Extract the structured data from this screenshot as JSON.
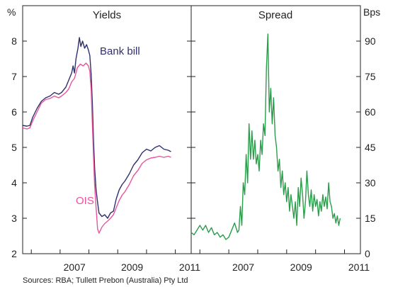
{
  "chart_data": [
    {
      "type": "line",
      "title": "Yields",
      "y_unit": "%",
      "ylim": [
        2,
        9
      ],
      "y_ticks": [
        "2",
        "3",
        "4",
        "5",
        "6",
        "7",
        "8"
      ],
      "x_ticks": [
        "2007",
        "2009",
        "2011"
      ],
      "xlim": [
        2005.7,
        2011.55
      ],
      "series": [
        {
          "name": "Bank bill",
          "color": "#2e2f6e",
          "points": [
            [
              2005.7,
              5.62
            ],
            [
              2005.85,
              5.6
            ],
            [
              2005.95,
              5.62
            ],
            [
              2006.05,
              5.85
            ],
            [
              2006.2,
              6.1
            ],
            [
              2006.35,
              6.3
            ],
            [
              2006.5,
              6.4
            ],
            [
              2006.65,
              6.45
            ],
            [
              2006.8,
              6.55
            ],
            [
              2006.95,
              6.5
            ],
            [
              2007.05,
              6.55
            ],
            [
              2007.2,
              6.7
            ],
            [
              2007.3,
              6.9
            ],
            [
              2007.4,
              7.1
            ],
            [
              2007.45,
              7.3
            ],
            [
              2007.5,
              7.1
            ],
            [
              2007.55,
              7.5
            ],
            [
              2007.62,
              7.8
            ],
            [
              2007.67,
              8.1
            ],
            [
              2007.72,
              7.85
            ],
            [
              2007.78,
              8.0
            ],
            [
              2007.85,
              7.8
            ],
            [
              2007.92,
              7.9
            ],
            [
              2007.98,
              7.75
            ],
            [
              2008.03,
              7.6
            ],
            [
              2008.08,
              7.05
            ],
            [
              2008.12,
              6.2
            ],
            [
              2008.16,
              5.2
            ],
            [
              2008.2,
              4.4
            ],
            [
              2008.25,
              3.8
            ],
            [
              2008.3,
              3.45
            ],
            [
              2008.35,
              3.15
            ],
            [
              2008.45,
              3.05
            ],
            [
              2008.55,
              3.1
            ],
            [
              2008.65,
              3.0
            ],
            [
              2008.75,
              3.15
            ],
            [
              2008.85,
              3.2
            ],
            [
              2008.95,
              3.55
            ],
            [
              2009.05,
              3.8
            ],
            [
              2009.15,
              3.95
            ],
            [
              2009.25,
              4.05
            ],
            [
              2009.4,
              4.25
            ],
            [
              2009.55,
              4.5
            ],
            [
              2009.7,
              4.65
            ],
            [
              2009.85,
              4.85
            ],
            [
              2010.0,
              4.95
            ],
            [
              2010.15,
              4.9
            ],
            [
              2010.3,
              5.0
            ],
            [
              2010.45,
              5.05
            ],
            [
              2010.6,
              4.95
            ],
            [
              2010.75,
              4.92
            ],
            [
              2010.85,
              4.88
            ]
          ]
        },
        {
          "name": "OIS",
          "color": "#e9539b",
          "points": [
            [
              2005.7,
              5.55
            ],
            [
              2005.85,
              5.52
            ],
            [
              2005.95,
              5.55
            ],
            [
              2006.05,
              5.75
            ],
            [
              2006.2,
              6.0
            ],
            [
              2006.35,
              6.25
            ],
            [
              2006.5,
              6.35
            ],
            [
              2006.65,
              6.38
            ],
            [
              2006.8,
              6.45
            ],
            [
              2006.95,
              6.4
            ],
            [
              2007.05,
              6.45
            ],
            [
              2007.2,
              6.55
            ],
            [
              2007.3,
              6.65
            ],
            [
              2007.4,
              6.85
            ],
            [
              2007.5,
              6.95
            ],
            [
              2007.6,
              7.25
            ],
            [
              2007.7,
              7.35
            ],
            [
              2007.8,
              7.3
            ],
            [
              2007.9,
              7.38
            ],
            [
              2007.98,
              7.3
            ],
            [
              2008.03,
              7.15
            ],
            [
              2008.08,
              6.6
            ],
            [
              2008.12,
              5.6
            ],
            [
              2008.16,
              4.7
            ],
            [
              2008.2,
              3.9
            ],
            [
              2008.25,
              3.3
            ],
            [
              2008.3,
              2.7
            ],
            [
              2008.35,
              2.58
            ],
            [
              2008.45,
              2.75
            ],
            [
              2008.55,
              2.85
            ],
            [
              2008.65,
              2.92
            ],
            [
              2008.75,
              3.0
            ],
            [
              2008.85,
              3.1
            ],
            [
              2008.95,
              3.3
            ],
            [
              2009.05,
              3.5
            ],
            [
              2009.15,
              3.65
            ],
            [
              2009.25,
              3.75
            ],
            [
              2009.4,
              3.95
            ],
            [
              2009.55,
              4.2
            ],
            [
              2009.7,
              4.35
            ],
            [
              2009.85,
              4.55
            ],
            [
              2010.0,
              4.65
            ],
            [
              2010.15,
              4.7
            ],
            [
              2010.3,
              4.72
            ],
            [
              2010.45,
              4.75
            ],
            [
              2010.6,
              4.72
            ],
            [
              2010.75,
              4.75
            ],
            [
              2010.85,
              4.72
            ]
          ]
        }
      ]
    },
    {
      "type": "line",
      "title": "Spread",
      "y_unit": "Bps",
      "ylim": [
        0,
        105
      ],
      "y_ticks": [
        "0",
        "15",
        "30",
        "45",
        "60",
        "75",
        "90"
      ],
      "x_ticks": [
        "2007",
        "2009",
        "2011"
      ],
      "xlim": [
        2005.7,
        2011.55
      ],
      "series": [
        {
          "color": "#2a9d4a",
          "points": [
            [
              2005.7,
              9
            ],
            [
              2005.8,
              8
            ],
            [
              2005.9,
              10
            ],
            [
              2006.0,
              12
            ],
            [
              2006.1,
              10
            ],
            [
              2006.2,
              12
            ],
            [
              2006.3,
              9
            ],
            [
              2006.4,
              11
            ],
            [
              2006.5,
              8
            ],
            [
              2006.6,
              9
            ],
            [
              2006.7,
              7
            ],
            [
              2006.8,
              8
            ],
            [
              2006.9,
              6
            ],
            [
              2007.0,
              7
            ],
            [
              2007.1,
              10
            ],
            [
              2007.2,
              13
            ],
            [
              2007.3,
              9
            ],
            [
              2007.35,
              10
            ],
            [
              2007.4,
              20
            ],
            [
              2007.45,
              12
            ],
            [
              2007.5,
              30
            ],
            [
              2007.55,
              25
            ],
            [
              2007.6,
              42
            ],
            [
              2007.65,
              30
            ],
            [
              2007.7,
              55
            ],
            [
              2007.75,
              40
            ],
            [
              2007.8,
              52
            ],
            [
              2007.85,
              40
            ],
            [
              2007.9,
              48
            ],
            [
              2007.95,
              38
            ],
            [
              2008.0,
              42
            ],
            [
              2008.05,
              35
            ],
            [
              2008.1,
              48
            ],
            [
              2008.15,
              42
            ],
            [
              2008.2,
              55
            ],
            [
              2008.25,
              50
            ],
            [
              2008.3,
              78
            ],
            [
              2008.35,
              93
            ],
            [
              2008.4,
              60
            ],
            [
              2008.45,
              70
            ],
            [
              2008.5,
              55
            ],
            [
              2008.55,
              66
            ],
            [
              2008.6,
              50
            ],
            [
              2008.65,
              45
            ],
            [
              2008.7,
              35
            ],
            [
              2008.75,
              40
            ],
            [
              2008.8,
              28
            ],
            [
              2008.85,
              35
            ],
            [
              2008.9,
              25
            ],
            [
              2008.95,
              30
            ],
            [
              2009.0,
              22
            ],
            [
              2009.05,
              28
            ],
            [
              2009.1,
              18
            ],
            [
              2009.15,
              25
            ],
            [
              2009.2,
              20
            ],
            [
              2009.25,
              15
            ],
            [
              2009.3,
              22
            ],
            [
              2009.35,
              12
            ],
            [
              2009.4,
              28
            ],
            [
              2009.45,
              20
            ],
            [
              2009.5,
              32
            ],
            [
              2009.55,
              25
            ],
            [
              2009.6,
              15
            ],
            [
              2009.65,
              22
            ],
            [
              2009.7,
              35
            ],
            [
              2009.75,
              25
            ],
            [
              2009.8,
              20
            ],
            [
              2009.85,
              27
            ],
            [
              2009.9,
              18
            ],
            [
              2009.95,
              25
            ],
            [
              2010.0,
              20
            ],
            [
              2010.05,
              23
            ],
            [
              2010.1,
              16
            ],
            [
              2010.15,
              22
            ],
            [
              2010.2,
              18
            ],
            [
              2010.25,
              25
            ],
            [
              2010.3,
              20
            ],
            [
              2010.35,
              24
            ],
            [
              2010.4,
              19
            ],
            [
              2010.45,
              30
            ],
            [
              2010.5,
              22
            ],
            [
              2010.55,
              20
            ],
            [
              2010.6,
              15
            ],
            [
              2010.65,
              17
            ],
            [
              2010.7,
              13
            ],
            [
              2010.75,
              16
            ],
            [
              2010.8,
              12
            ],
            [
              2010.85,
              15
            ]
          ]
        }
      ]
    }
  ],
  "series_labels": {
    "bank_bill": "Bank bill",
    "ois": "OIS"
  },
  "left_axis_unit": "%",
  "right_axis_unit": "Bps",
  "source": "Sources: RBA; Tullett Prebon (Australia) Pty Ltd"
}
